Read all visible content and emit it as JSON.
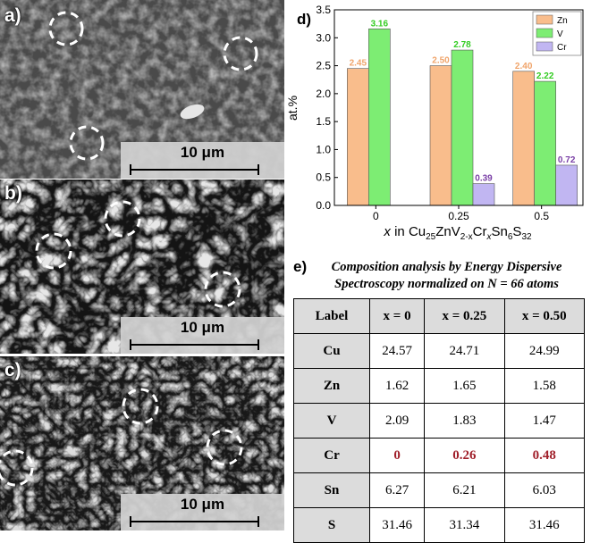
{
  "sem_panels": [
    {
      "letter": "a)",
      "scale": "10 μm"
    },
    {
      "letter": "b)",
      "scale": "10 μm"
    },
    {
      "letter": "c)",
      "scale": "10 μm"
    }
  ],
  "chart_panel_letter": "d)",
  "chart_data": {
    "type": "bar",
    "categories": [
      "0",
      "0.25",
      "0.5"
    ],
    "series": [
      {
        "name": "Zn",
        "color": "#f9bd8c",
        "label_color": "#f0a46a",
        "values": [
          2.45,
          2.5,
          2.4
        ],
        "labels": [
          "2.45",
          "2.50",
          "2.40"
        ]
      },
      {
        "name": "V",
        "color": "#7ded73",
        "label_color": "#33cc22",
        "values": [
          3.16,
          2.78,
          2.22
        ],
        "labels": [
          "3.16",
          "2.78",
          "2.22"
        ]
      },
      {
        "name": "Cr",
        "color": "#c1b6f2",
        "label_color": "#7a3fa6",
        "values": [
          0,
          0.39,
          0.72
        ],
        "labels": [
          "",
          "0.39",
          "0.72"
        ]
      }
    ],
    "ylabel": "at.%",
    "ylim": [
      0,
      3.5
    ],
    "yticks": [
      "0.0",
      "0.5",
      "1.0",
      "1.5",
      "2.0",
      "2.5",
      "3.0",
      "3.5"
    ],
    "legend": "top-right",
    "grid": false
  },
  "chart_xlabel": {
    "x": "x",
    "in": " in ",
    "cu": "Cu",
    "cu_sub": "25",
    "znv": "ZnV",
    "znv_sub": "2-x",
    "cr": "Cr",
    "cr_sub": "x",
    "sn": "Sn",
    "sn_sub": "6",
    "s": "S",
    "s_sub": "32"
  },
  "table": {
    "letter": "e)",
    "title_line1": "Composition analysis by Energy Dispersive",
    "title_line2": "Spectroscopy normalized on N = 66 atoms",
    "headers": [
      "Label",
      "x = 0",
      "x = 0.25",
      "x = 0.50"
    ],
    "rows": [
      {
        "label": "Cu",
        "values": [
          "24.57",
          "24.71",
          "24.99"
        ]
      },
      {
        "label": "Zn",
        "values": [
          "1.62",
          "1.65",
          "1.58"
        ]
      },
      {
        "label": "V",
        "values": [
          "2.09",
          "1.83",
          "1.47"
        ]
      },
      {
        "label": "Cr",
        "values": [
          "0",
          "0.26",
          "0.48"
        ],
        "highlight_color": "#a01f2a"
      },
      {
        "label": "Sn",
        "values": [
          "6.27",
          "6.21",
          "6.03"
        ]
      },
      {
        "label": "S",
        "values": [
          "31.46",
          "31.34",
          "31.46"
        ]
      }
    ]
  }
}
